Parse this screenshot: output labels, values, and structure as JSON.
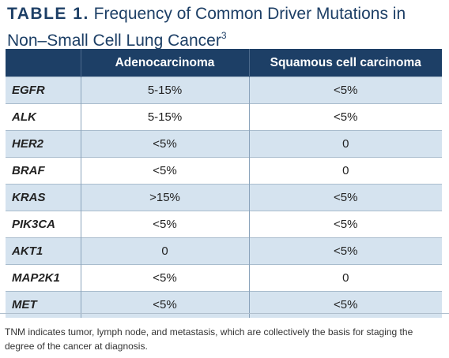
{
  "title": {
    "label": "TABLE 1.",
    "text": "Frequency of Common Driver Mutations in Non–Small Cell Lung Cancer",
    "ref": "3"
  },
  "table": {
    "headers": [
      "",
      "Adenocarcinoma",
      "Squamous cell carcinoma"
    ],
    "rows": [
      {
        "gene": "EGFR",
        "adeno": "5-15%",
        "squamous": "<5%"
      },
      {
        "gene": "ALK",
        "adeno": "5-15%",
        "squamous": "<5%"
      },
      {
        "gene": "HER2",
        "adeno": "<5%",
        "squamous": "0"
      },
      {
        "gene": "BRAF",
        "adeno": "<5%",
        "squamous": "0"
      },
      {
        "gene": "KRAS",
        "adeno": ">15%",
        "squamous": "<5%"
      },
      {
        "gene": "PIK3CA",
        "adeno": "<5%",
        "squamous": "<5%"
      },
      {
        "gene": "AKT1",
        "adeno": "0",
        "squamous": "<5%"
      },
      {
        "gene": "MAP2K1",
        "adeno": "<5%",
        "squamous": "0"
      },
      {
        "gene": "MET",
        "adeno": "<5%",
        "squamous": "<5%"
      }
    ]
  },
  "footnote": "TNM indicates tumor, lymph node, and metastasis, which are collectively the basis for staging the degree of the cancer at diagnosis.",
  "colors": {
    "header_bg": "#1d3f66",
    "title_text": "#1d3f66",
    "stripe": "#d5e3ef"
  }
}
